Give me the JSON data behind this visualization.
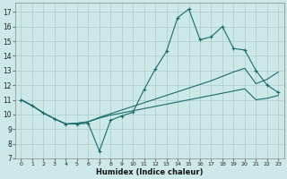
{
  "xlabel": "Humidex (Indice chaleur)",
  "bg_color": "#cce8e8",
  "grid_color": "#aacccc",
  "line_color": "#1a6b6b",
  "xlim": [
    -0.5,
    23.5
  ],
  "ylim": [
    7,
    17.6
  ],
  "yticks": [
    7,
    8,
    9,
    10,
    11,
    12,
    13,
    14,
    15,
    16,
    17
  ],
  "xticks": [
    0,
    1,
    2,
    3,
    4,
    5,
    6,
    7,
    8,
    9,
    10,
    11,
    12,
    13,
    14,
    15,
    16,
    17,
    18,
    19,
    20,
    21,
    22,
    23
  ],
  "line_main_x": [
    0,
    1,
    2,
    3,
    4,
    5,
    6,
    7,
    8,
    9,
    10,
    11,
    12,
    13,
    14,
    15,
    16,
    17,
    18,
    19,
    20,
    21,
    22,
    23
  ],
  "line_main_y": [
    11.0,
    10.6,
    10.1,
    9.7,
    9.35,
    9.35,
    9.4,
    7.5,
    9.6,
    9.9,
    10.15,
    11.7,
    13.1,
    14.3,
    16.6,
    17.2,
    15.1,
    15.3,
    16.0,
    14.5,
    14.4,
    13.0,
    12.0,
    11.5
  ],
  "line_upper_x": [
    0,
    1,
    2,
    3,
    4,
    5,
    6,
    7,
    8,
    9,
    10,
    11,
    12,
    13,
    14,
    15,
    16,
    17,
    18,
    19,
    20,
    21,
    22,
    23
  ],
  "line_upper_y": [
    11.0,
    10.6,
    10.1,
    9.7,
    9.35,
    9.4,
    9.5,
    9.8,
    10.05,
    10.3,
    10.55,
    10.8,
    11.05,
    11.3,
    11.55,
    11.8,
    12.05,
    12.3,
    12.6,
    12.9,
    13.15,
    12.1,
    12.4,
    12.9
  ],
  "line_lower_x": [
    0,
    1,
    2,
    3,
    4,
    5,
    6,
    7,
    8,
    9,
    10,
    11,
    12,
    13,
    14,
    15,
    16,
    17,
    18,
    19,
    20,
    21,
    22,
    23
  ],
  "line_lower_y": [
    11.0,
    10.6,
    10.1,
    9.7,
    9.35,
    9.4,
    9.5,
    9.75,
    9.95,
    10.1,
    10.25,
    10.4,
    10.55,
    10.7,
    10.85,
    11.0,
    11.15,
    11.3,
    11.45,
    11.6,
    11.75,
    11.0,
    11.1,
    11.3
  ]
}
